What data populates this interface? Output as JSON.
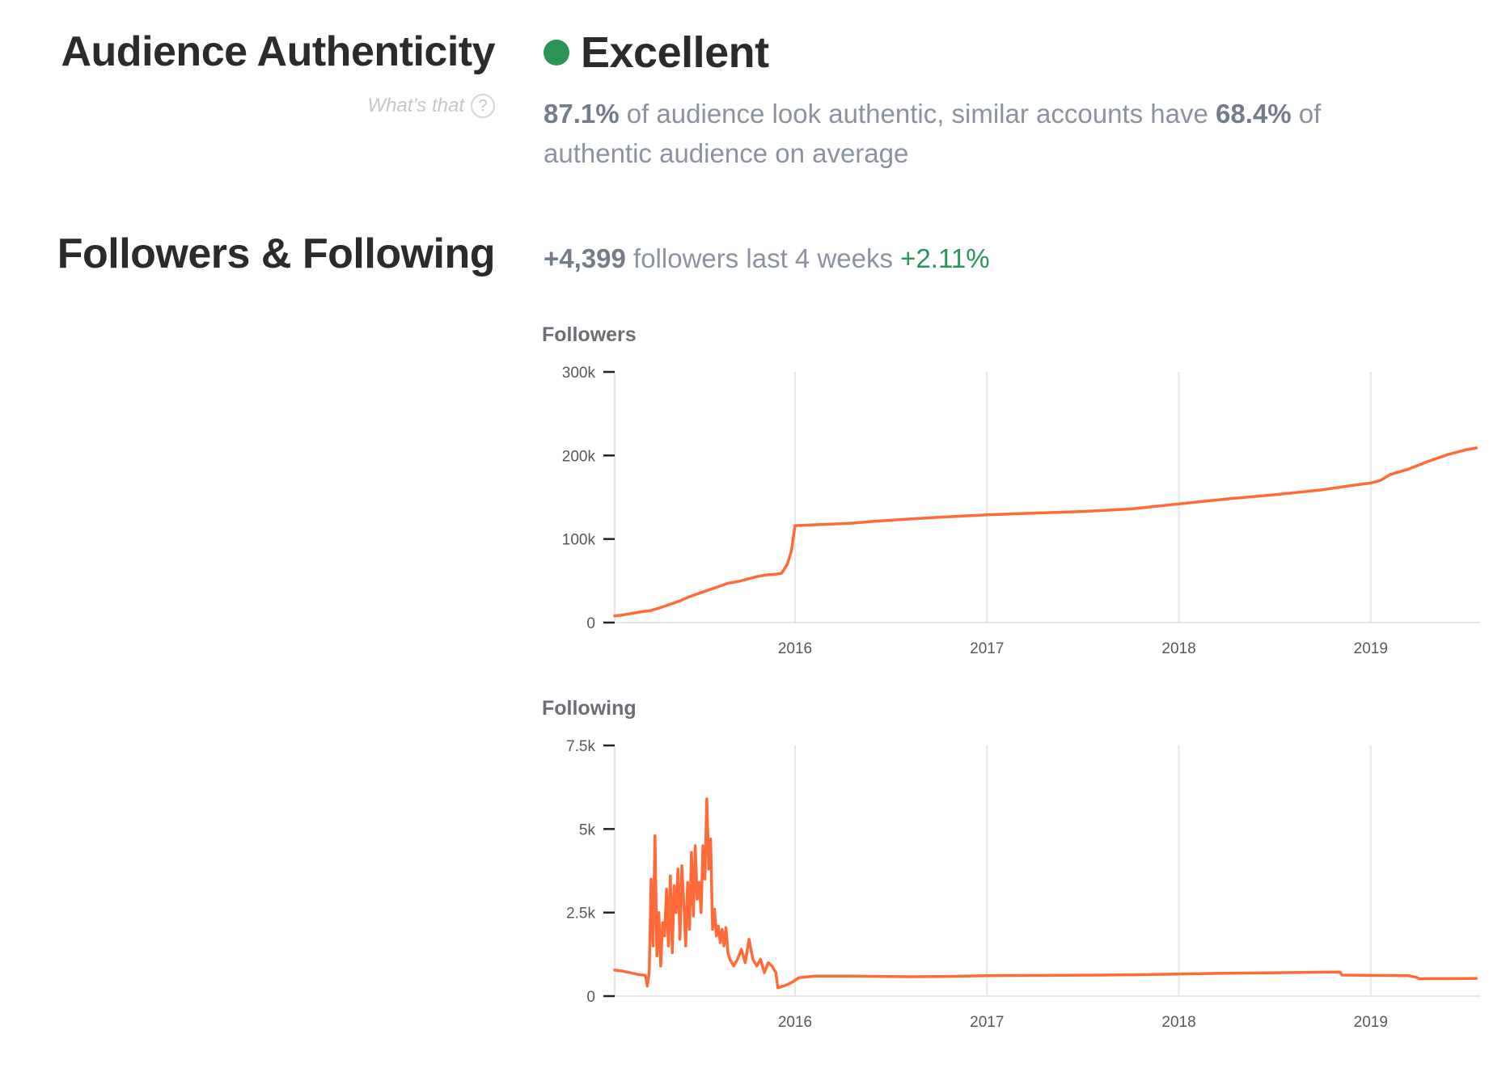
{
  "authenticity": {
    "title": "Audience Authenticity",
    "help_label": "What’s that",
    "help_icon": "?",
    "rating": "Excellent",
    "rating_color": "#2a9456",
    "authentic_pct": "87.1%",
    "desc_mid": " of audience look authentic, similar accounts have ",
    "similar_pct": "68.4%",
    "desc_end": " of authentic audience on average"
  },
  "followers_following": {
    "title": "Followers & Following",
    "growth_count": "+4,399",
    "growth_text": " followers last 4 weeks ",
    "growth_pct": "+2.11%",
    "growth_color": "#2a9456"
  },
  "colors": {
    "line": "#ff6a38",
    "grid": "#e6e6e6",
    "axis": "#222222"
  },
  "chart_data": [
    {
      "type": "line",
      "title": "Followers",
      "xlabel": "",
      "ylabel": "",
      "x_ticks": [
        "2016",
        "2017",
        "2018",
        "2019"
      ],
      "y_ticks": [
        "0",
        "100k",
        "200k",
        "300k"
      ],
      "xlim": [
        2015.06,
        2019.57
      ],
      "ylim": [
        0,
        300000
      ],
      "grid": "vertical",
      "series": [
        {
          "points": [
            [
              2015.06,
              8000
            ],
            [
              2015.1,
              9000
            ],
            [
              2015.15,
              11000
            ],
            [
              2015.2,
              13000
            ],
            [
              2015.25,
              14500
            ],
            [
              2015.3,
              18000
            ],
            [
              2015.35,
              22000
            ],
            [
              2015.4,
              26000
            ],
            [
              2015.45,
              31000
            ],
            [
              2015.5,
              35000
            ],
            [
              2015.55,
              39000
            ],
            [
              2015.6,
              43000
            ],
            [
              2015.65,
              47000
            ],
            [
              2015.7,
              49000
            ],
            [
              2015.75,
              52000
            ],
            [
              2015.8,
              55000
            ],
            [
              2015.85,
              57000
            ],
            [
              2015.9,
              58000
            ],
            [
              2015.93,
              59000
            ],
            [
              2015.96,
              70000
            ],
            [
              2015.98,
              85000
            ],
            [
              2016.0,
              116000
            ],
            [
              2016.1,
              117000
            ],
            [
              2016.2,
              118000
            ],
            [
              2016.3,
              119000
            ],
            [
              2016.4,
              121000
            ],
            [
              2016.5,
              122500
            ],
            [
              2016.6,
              124000
            ],
            [
              2016.75,
              126000
            ],
            [
              2017.0,
              129000
            ],
            [
              2017.25,
              131000
            ],
            [
              2017.5,
              133000
            ],
            [
              2017.75,
              136000
            ],
            [
              2018.0,
              142000
            ],
            [
              2018.25,
              148000
            ],
            [
              2018.5,
              153000
            ],
            [
              2018.75,
              159000
            ],
            [
              2018.9,
              164000
            ],
            [
              2019.0,
              167000
            ],
            [
              2019.05,
              170000
            ],
            [
              2019.1,
              177000
            ],
            [
              2019.2,
              184000
            ],
            [
              2019.3,
              193000
            ],
            [
              2019.4,
              201000
            ],
            [
              2019.5,
              207000
            ],
            [
              2019.55,
              209000
            ]
          ]
        }
      ]
    },
    {
      "type": "line",
      "title": "Following",
      "xlabel": "",
      "ylabel": "",
      "x_ticks": [
        "2016",
        "2017",
        "2018",
        "2019"
      ],
      "y_ticks": [
        "0",
        "2.5k",
        "5k",
        "7.5k"
      ],
      "xlim": [
        2015.06,
        2019.57
      ],
      "ylim": [
        0,
        7500
      ],
      "grid": "vertical",
      "series": [
        {
          "points": [
            [
              2015.06,
              780
            ],
            [
              2015.1,
              750
            ],
            [
              2015.14,
              700
            ],
            [
              2015.18,
              650
            ],
            [
              2015.22,
              620
            ],
            [
              2015.23,
              300
            ],
            [
              2015.24,
              700
            ],
            [
              2015.25,
              3500
            ],
            [
              2015.26,
              1500
            ],
            [
              2015.27,
              4800
            ],
            [
              2015.28,
              1200
            ],
            [
              2015.29,
              2500
            ],
            [
              2015.3,
              900
            ],
            [
              2015.31,
              2200
            ],
            [
              2015.32,
              1800
            ],
            [
              2015.33,
              3200
            ],
            [
              2015.34,
              1500
            ],
            [
              2015.35,
              3600
            ],
            [
              2015.36,
              1300
            ],
            [
              2015.37,
              3300
            ],
            [
              2015.38,
              2500
            ],
            [
              2015.39,
              3800
            ],
            [
              2015.4,
              1700
            ],
            [
              2015.41,
              3900
            ],
            [
              2015.42,
              2800
            ],
            [
              2015.43,
              1500
            ],
            [
              2015.44,
              3400
            ],
            [
              2015.45,
              2000
            ],
            [
              2015.46,
              4300
            ],
            [
              2015.47,
              2400
            ],
            [
              2015.48,
              4500
            ],
            [
              2015.49,
              2900
            ],
            [
              2015.5,
              3400
            ],
            [
              2015.51,
              2500
            ],
            [
              2015.52,
              4500
            ],
            [
              2015.53,
              3500
            ],
            [
              2015.54,
              5900
            ],
            [
              2015.55,
              3800
            ],
            [
              2015.56,
              4700
            ],
            [
              2015.57,
              2000
            ],
            [
              2015.58,
              2600
            ],
            [
              2015.59,
              1800
            ],
            [
              2015.6,
              2100
            ],
            [
              2015.61,
              1600
            ],
            [
              2015.62,
              2000
            ],
            [
              2015.63,
              1500
            ],
            [
              2015.64,
              2050
            ],
            [
              2015.65,
              1300
            ],
            [
              2015.66,
              1100
            ],
            [
              2015.68,
              900
            ],
            [
              2015.7,
              1100
            ],
            [
              2015.72,
              1400
            ],
            [
              2015.74,
              1000
            ],
            [
              2015.76,
              1700
            ],
            [
              2015.78,
              1100
            ],
            [
              2015.8,
              900
            ],
            [
              2015.82,
              1100
            ],
            [
              2015.84,
              700
            ],
            [
              2015.86,
              1000
            ],
            [
              2015.88,
              900
            ],
            [
              2015.9,
              700
            ],
            [
              2015.91,
              250
            ],
            [
              2015.94,
              300
            ],
            [
              2015.98,
              400
            ],
            [
              2016.02,
              550
            ],
            [
              2016.1,
              600
            ],
            [
              2016.3,
              600
            ],
            [
              2016.6,
              580
            ],
            [
              2016.8,
              590
            ],
            [
              2017.0,
              610
            ],
            [
              2017.3,
              620
            ],
            [
              2017.6,
              630
            ],
            [
              2017.9,
              650
            ],
            [
              2018.2,
              680
            ],
            [
              2018.5,
              700
            ],
            [
              2018.8,
              720
            ],
            [
              2018.84,
              720
            ],
            [
              2018.85,
              630
            ],
            [
              2019.0,
              620
            ],
            [
              2019.2,
              610
            ],
            [
              2019.24,
              560
            ],
            [
              2019.25,
              520
            ],
            [
              2019.4,
              520
            ],
            [
              2019.55,
              530
            ]
          ]
        }
      ]
    }
  ]
}
